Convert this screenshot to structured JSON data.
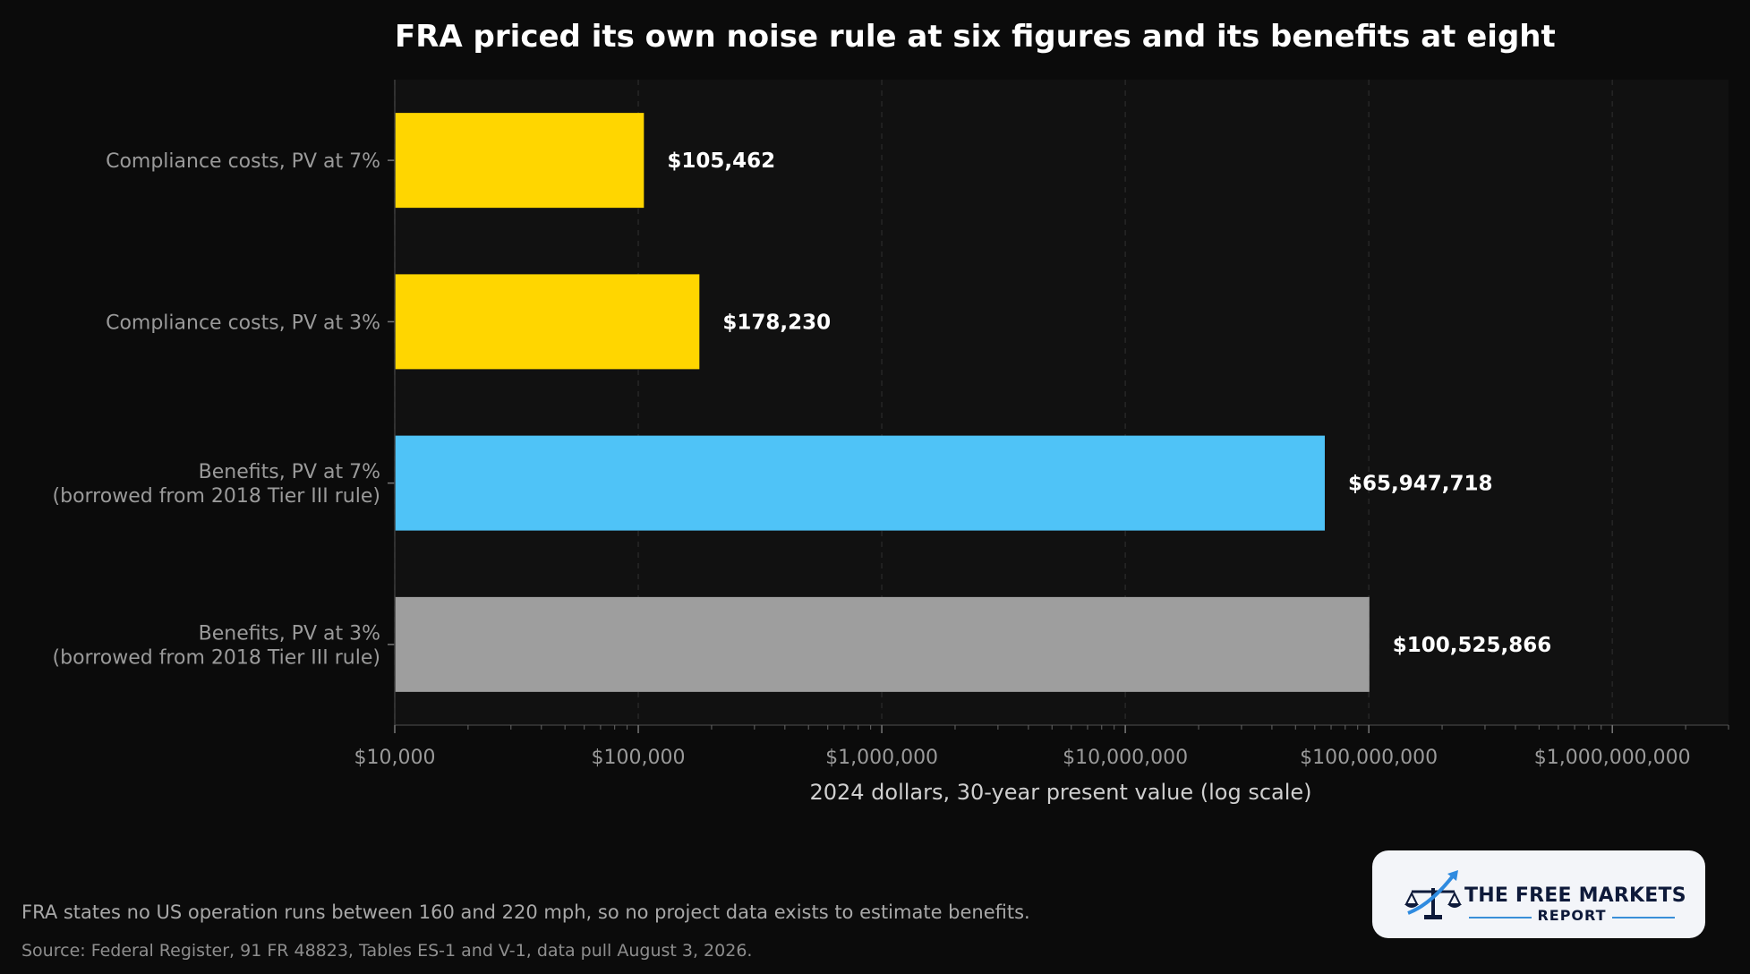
{
  "chart_data": {
    "type": "bar",
    "orientation": "horizontal",
    "title": "FRA priced its own noise rule at six figures and its benefits at eight",
    "xlabel": "2024 dollars, 30-year present value (log scale)",
    "ylabel": "",
    "xscale": "log",
    "xlim": [
      10000,
      3000000000
    ],
    "xticks": [
      10000,
      100000,
      1000000,
      10000000,
      100000000,
      1000000000
    ],
    "xtick_labels": [
      "$10,000",
      "$100,000",
      "$1,000,000",
      "$10,000,000",
      "$100,000,000",
      "$1,000,000,000"
    ],
    "grid": "vertical dashed",
    "categories": [
      [
        "Compliance costs, PV at 7%"
      ],
      [
        "Compliance costs, PV at 3%"
      ],
      [
        "Benefits, PV at 7%",
        "(borrowed from 2018 Tier III rule)"
      ],
      [
        "Benefits, PV at 3%",
        "(borrowed from 2018 Tier III rule)"
      ]
    ],
    "values": [
      105462,
      178230,
      65947718,
      100525866
    ],
    "value_labels": [
      "$105,462",
      "$178,230",
      "$65,947,718",
      "$100,525,866"
    ],
    "colors": [
      "#ffd600",
      "#ffd600",
      "#4fc3f7",
      "#9e9e9e"
    ]
  },
  "footnote": "FRA states no US operation runs between 160 and 220 mph, so no project data exists to estimate benefits.",
  "source": "Source: Federal Register, 91 FR 48823, Tables ES-1 and V-1, data pull August 3, 2026.",
  "logo": {
    "top_text": "THE FREE MARKETS",
    "bottom_text": "REPORT"
  }
}
